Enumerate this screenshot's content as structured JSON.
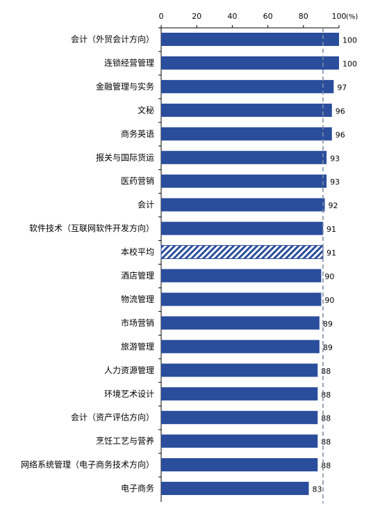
{
  "chart_data": {
    "type": "bar",
    "orientation": "horizontal",
    "title": "",
    "xlabel": "",
    "ylabel": "",
    "unit": "(%)",
    "xlim": [
      0,
      100
    ],
    "x_ticks": [
      0,
      20,
      40,
      60,
      80,
      100
    ],
    "grid": false,
    "legend": "none",
    "reference_line": {
      "value": 91,
      "style": "dashed",
      "color": "#7f8fa8"
    },
    "bar_color": "#2a4d9c",
    "highlight_category": "本校平均",
    "highlight_pattern": "diagonal-hatch",
    "categories": [
      "会计（外贸会计方向）",
      "连锁经营管理",
      "金融管理与实务",
      "文秘",
      "商务英语",
      "报关与国际货运",
      "医药营销",
      "会计",
      "软件技术（互联网软件开发方向）",
      "本校平均",
      "酒店管理",
      "物流管理",
      "市场营销",
      "旅游管理",
      "人力资源管理",
      "环境艺术设计",
      "会计（资产评估方向）",
      "烹饪工艺与营养",
      "网络系统管理（电子商务技术方向）",
      "电子商务"
    ],
    "values": [
      100,
      100,
      97,
      96,
      96,
      93,
      93,
      92,
      91,
      91,
      90,
      90,
      89,
      89,
      88,
      88,
      88,
      88,
      88,
      83
    ]
  }
}
